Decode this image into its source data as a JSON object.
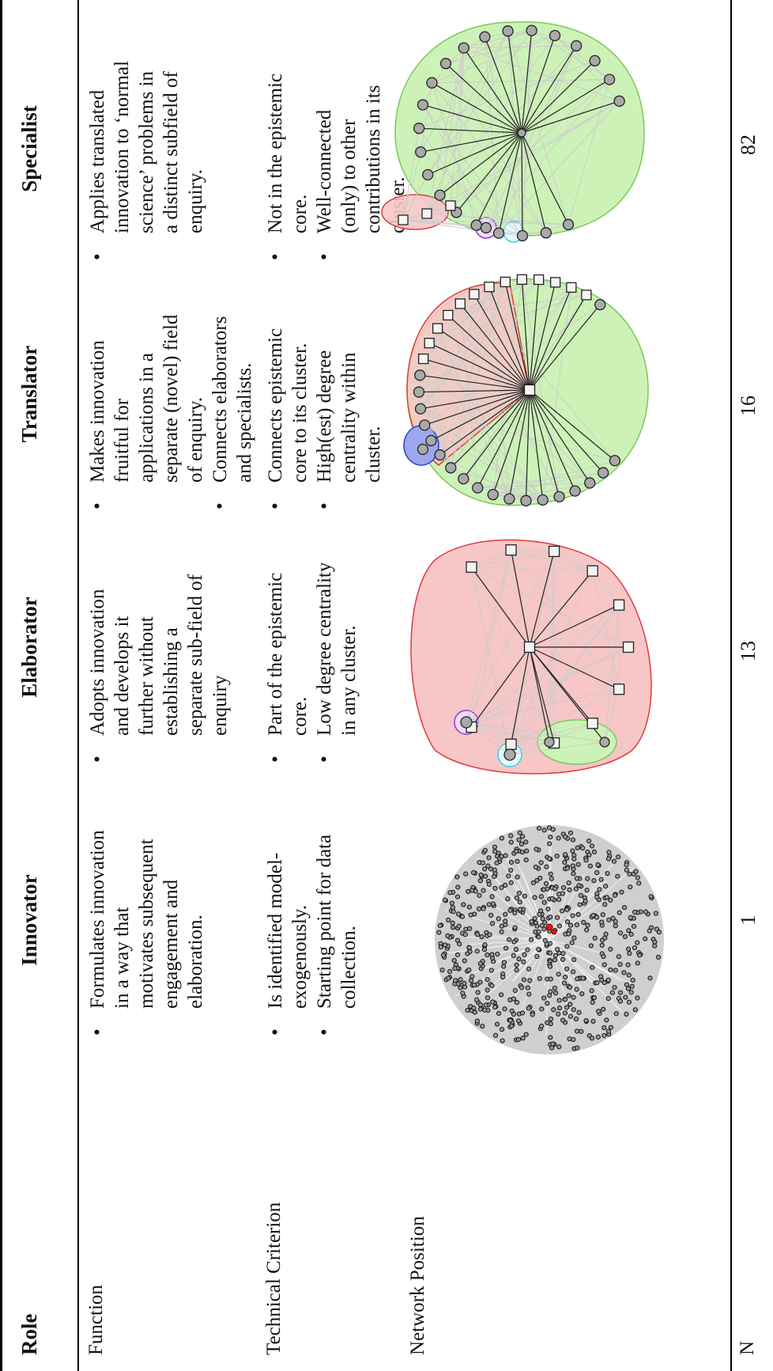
{
  "table": {
    "row_labels": {
      "role": "Role",
      "function": "Function",
      "technical": "Technical Criterion",
      "network": "Network Position",
      "n": "N"
    },
    "columns": [
      {
        "heading": "Innovator",
        "function": [
          "Formulates innovation in a way that motivates subsequent engagement and elaboration."
        ],
        "technical": [
          "Is identified model-exogenously.",
          "Starting point for data collection."
        ],
        "n": "1"
      },
      {
        "heading": "Elaborator",
        "function": [
          "Adopts innovation and develops it further without establishing a separate sub-field of enquiry"
        ],
        "technical": [
          "Part of the epistemic core.",
          "Low degree centrality in any cluster."
        ],
        "n": "13"
      },
      {
        "heading": "Translator",
        "function": [
          "Makes innovation fruitful for applications in a separate (novel) field of enquiry.",
          "Connects elaborators and specialists."
        ],
        "technical": [
          "Connects epistemic core to its cluster.",
          "High(est) degree centrality within cluster."
        ],
        "n": "16"
      },
      {
        "heading": "Specialist",
        "function": [
          "Applies translated innovation to ‘normal science’ problems in a distinct subfield of enquiry."
        ],
        "technical": [
          "Not in the epistemic core.",
          "Well-connected (only) to other contributions in its cluster."
        ],
        "n": "82"
      }
    ]
  },
  "colors": {
    "red_cluster": "#f7c6c6",
    "green_cluster": "#cdf2b8",
    "cyan_ring": "#36d2e6",
    "purple_ring": "#8f3bd0",
    "blue_cluster": "#9ea6ee",
    "node_gray": "#a9a9a9",
    "innovator_highlight": "#e01a1a"
  }
}
